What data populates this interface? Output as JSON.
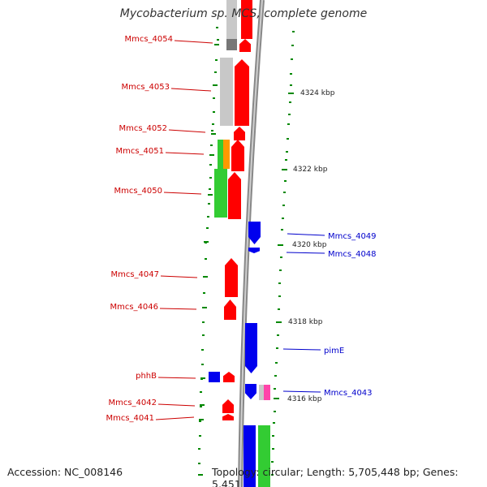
{
  "title": "Mycobacterium sp. MCS, complete genome",
  "footer": {
    "accession": "Accession: NC_008146",
    "topology": "Topology: circular; Length: 5,705,448 bp; Genes: 5,451"
  },
  "colors": {
    "forward_strand": "#ff0000",
    "reverse_strand": "#0000ee",
    "left_label": "#cc0000",
    "right_label": "#0000cc",
    "backbone": "#888888",
    "tick": "#008800",
    "feature_grey": "#c8c8c8",
    "feature_dark_grey": "#777777",
    "feature_green": "#33cc33",
    "feature_orange": "#ff9900",
    "feature_pink": "#ff44aa"
  },
  "scale_labels": [
    "4324 kbp",
    "4322 kbp",
    "4320 kbp",
    "4318 kbp",
    "4316 kbp"
  ],
  "left_genes": [
    "Mmcs_4054",
    "Mmcs_4053",
    "Mmcs_4052",
    "Mmcs_4051",
    "Mmcs_4050",
    "Mmcs_4047",
    "Mmcs_4046",
    "phhB",
    "Mmcs_4042",
    "Mmcs_4041"
  ],
  "right_genes": [
    "Mmcs_4049",
    "Mmcs_4048",
    "pimE",
    "Mmcs_4043"
  ]
}
